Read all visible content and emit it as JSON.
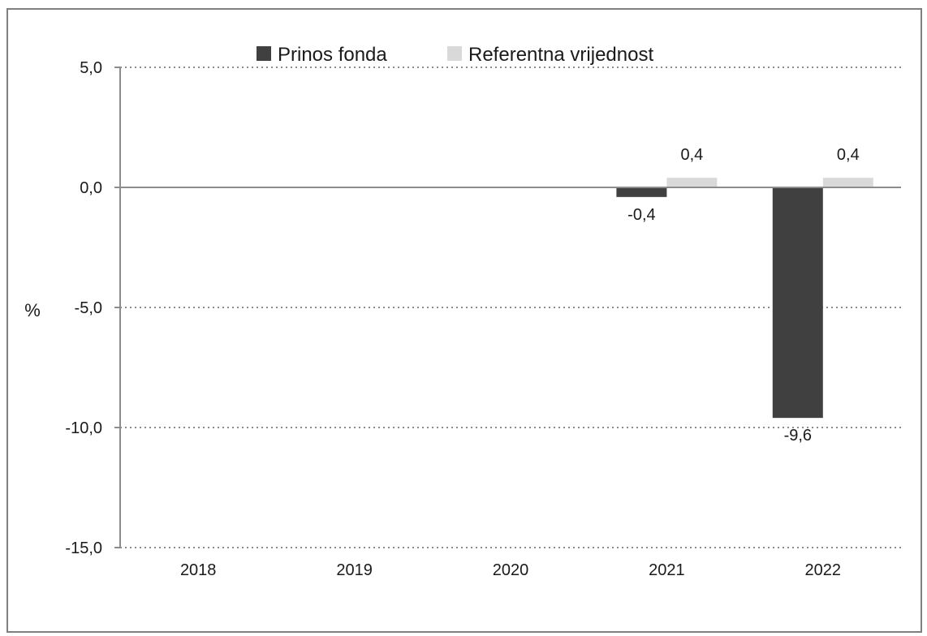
{
  "chart_data": {
    "type": "bar",
    "categories": [
      "2018",
      "2019",
      "2020",
      "2021",
      "2022"
    ],
    "series": [
      {
        "name": "Prinos fonda",
        "color": "#404040",
        "values": [
          null,
          null,
          null,
          -0.4,
          -9.6
        ],
        "labels": [
          "",
          "",
          "",
          "-0,4",
          "-9,6"
        ]
      },
      {
        "name": "Referentna vrijednost",
        "color": "#d9d9d9",
        "values": [
          null,
          null,
          null,
          0.4,
          0.4
        ],
        "labels": [
          "",
          "",
          "",
          "0,4",
          "0,4"
        ]
      }
    ],
    "ylabel": "%",
    "ylim": [
      -15,
      5
    ],
    "yticks": [
      5,
      0,
      -5,
      -10,
      -15
    ],
    "ytick_labels": [
      "5,0",
      "0,0",
      "-5,0",
      "-10,0",
      "-15,0"
    ],
    "grid": "dotted horizontal",
    "legend": "top-center"
  }
}
